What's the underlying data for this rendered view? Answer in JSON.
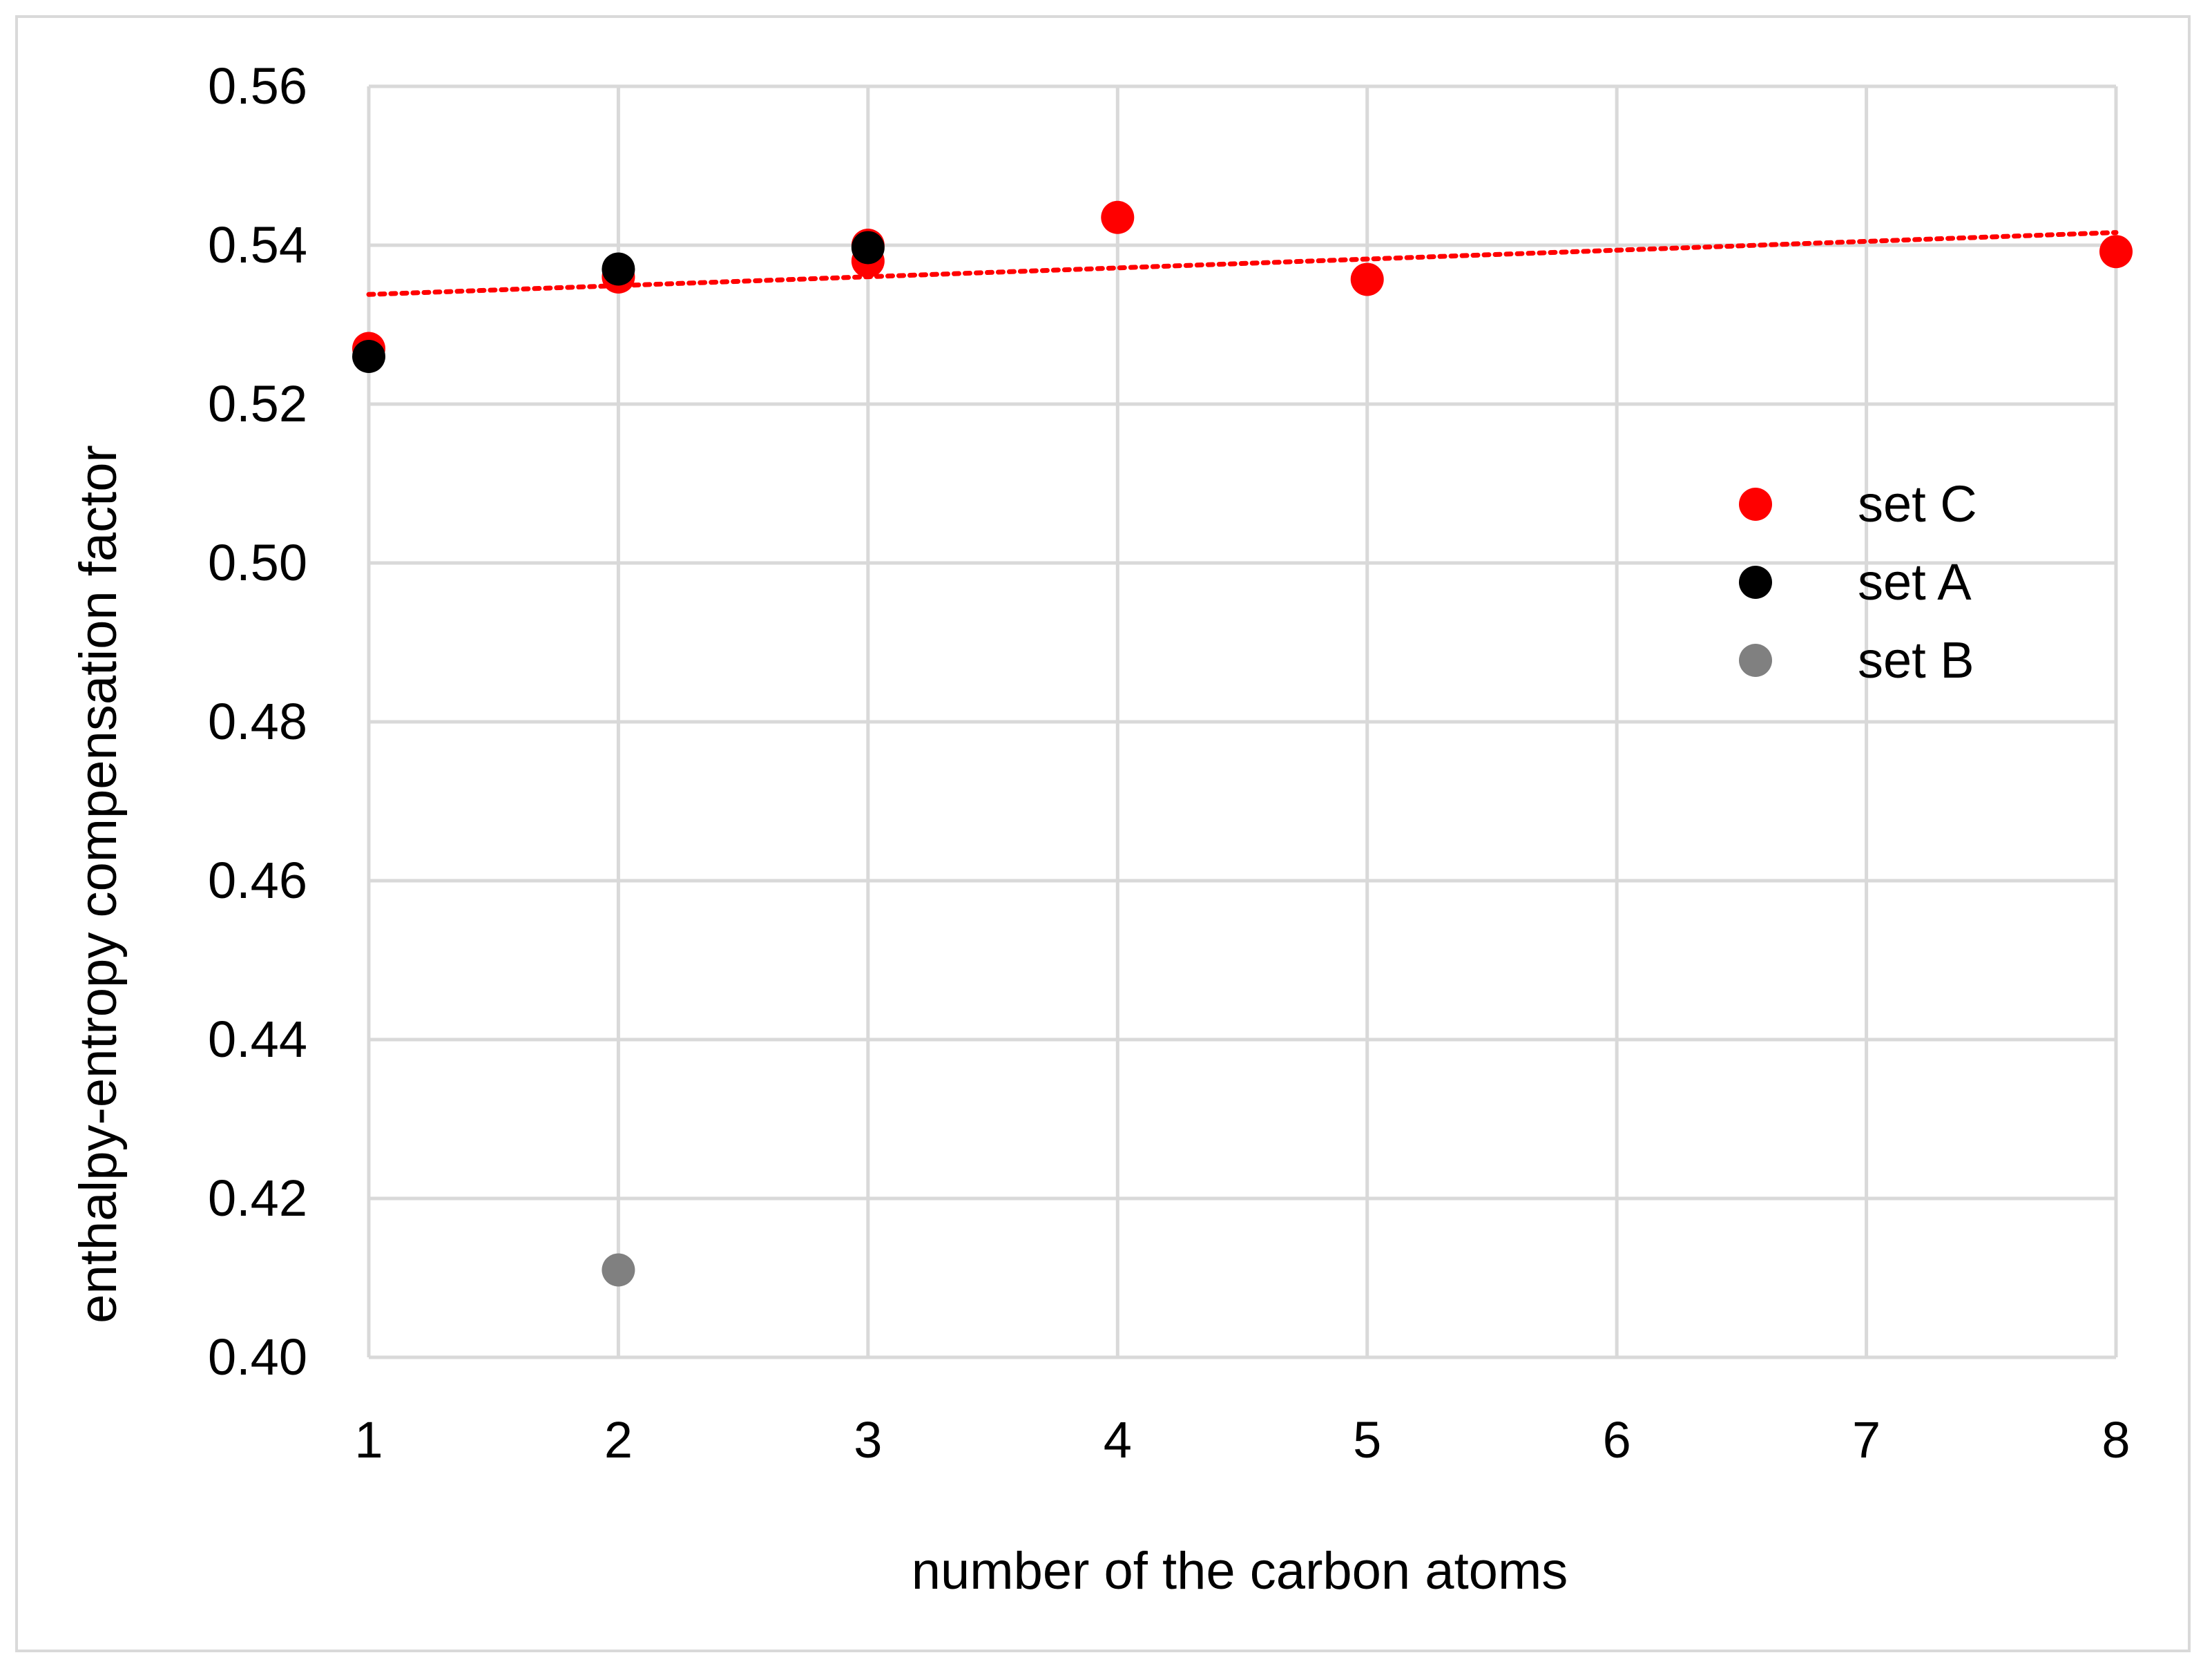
{
  "chart_data": {
    "type": "scatter",
    "title": "",
    "xlabel": "number of the carbon atoms",
    "ylabel": "enthalpy-entropy compensation factor",
    "xlim": [
      1,
      8
    ],
    "ylim": [
      0.4,
      0.56
    ],
    "x_ticks": [
      "1",
      "2",
      "3",
      "4",
      "5",
      "6",
      "7",
      "8"
    ],
    "y_ticks": [
      "0.40",
      "0.42",
      "0.44",
      "0.46",
      "0.48",
      "0.50",
      "0.52",
      "0.54",
      "0.56"
    ],
    "grid": true,
    "legend_position": "right",
    "series": [
      {
        "name": "set C",
        "color": "#ff0000",
        "points": [
          {
            "x": 1,
            "y": 0.527
          },
          {
            "x": 2,
            "y": 0.536
          },
          {
            "x": 3,
            "y": 0.54
          },
          {
            "x": 3,
            "y": 0.538
          },
          {
            "x": 4,
            "y": 0.5435
          },
          {
            "x": 5,
            "y": 0.5357
          },
          {
            "x": 8,
            "y": 0.5392
          }
        ]
      },
      {
        "name": "set A",
        "color": "#000000",
        "points": [
          {
            "x": 1,
            "y": 0.526
          },
          {
            "x": 2,
            "y": 0.537
          },
          {
            "x": 3,
            "y": 0.5397
          }
        ]
      },
      {
        "name": "set B",
        "color": "#808080",
        "points": [
          {
            "x": 2,
            "y": 0.411
          }
        ]
      }
    ],
    "trendline": {
      "series": "set C",
      "style": "dotted",
      "color": "#ff0000",
      "x_start": 1,
      "y_start": 0.5338,
      "x_end": 8,
      "y_end": 0.5416
    }
  }
}
